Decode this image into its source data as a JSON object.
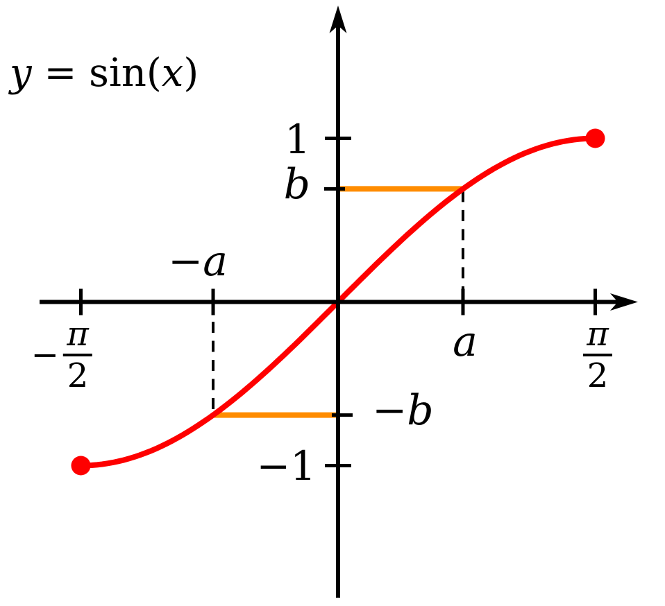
{
  "title": {
    "y": "y",
    "mid": " = sin(",
    "x": "x",
    "close": ")"
  },
  "labels": {
    "one": "1",
    "b": "b",
    "neg_one": "−1",
    "neg_b": "−b",
    "neg_a": "−a",
    "a": "a",
    "pi": "π",
    "two": "2",
    "minus": "−"
  },
  "chart_data": {
    "type": "line",
    "title": "y = sin(x)",
    "function": "sin(x)",
    "x_domain": [
      -1.5707963,
      1.5707963
    ],
    "y_range": [
      -1,
      1
    ],
    "a_value": 0.763,
    "b_value": 0.691,
    "x_ticks": [
      {
        "value": -1.5707963,
        "label": "−π/2"
      },
      {
        "value": -0.763,
        "label": "−a"
      },
      {
        "value": 0.763,
        "label": "a"
      },
      {
        "value": 1.5707963,
        "label": "π/2"
      }
    ],
    "y_ticks": [
      {
        "value": 1,
        "label": "1"
      },
      {
        "value": 0.691,
        "label": "b"
      },
      {
        "value": -0.691,
        "label": "−b"
      },
      {
        "value": -1,
        "label": "−1"
      }
    ],
    "marked_points": [
      {
        "x": 0.763,
        "y": 0.691,
        "description": "(a, b) with b = sin(a)"
      },
      {
        "x": -0.763,
        "y": -0.691,
        "description": "(−a, −b) with −b = sin(−a)"
      }
    ],
    "endpoints": [
      {
        "x": -1.5707963,
        "y": -1
      },
      {
        "x": 1.5707963,
        "y": 1
      }
    ],
    "grid": false,
    "legend": false,
    "colors": {
      "curve": "#fe0000",
      "highlight": "#ff8c00",
      "axis": "#000000",
      "dashed": "#000000",
      "background": "#ffffff"
    }
  }
}
